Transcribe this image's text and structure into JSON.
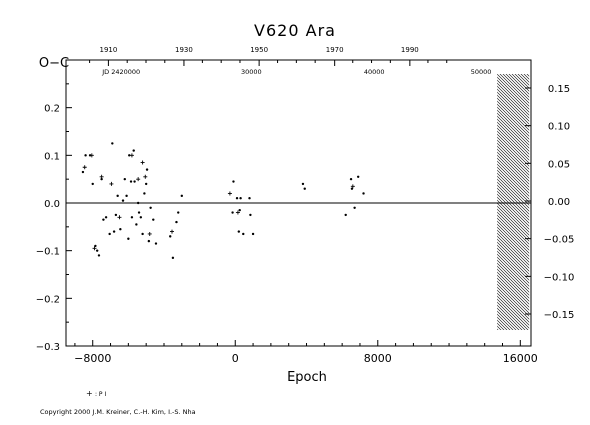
{
  "chart_data": {
    "type": "scatter",
    "title": "V620  Ara",
    "ylabel": "O−C",
    "xlabel": "Epoch",
    "xlim": [
      -9500,
      16600
    ],
    "ylim": [
      -0.3,
      0.3
    ],
    "bottom_ticks": {
      "values": [
        -8000,
        0,
        8000,
        16000
      ],
      "labels": [
        "−8000",
        "0",
        "8000",
        "16000"
      ]
    },
    "left_ticks": {
      "values": [
        0.2,
        0.1,
        0.0,
        -0.1,
        -0.2,
        -0.3
      ],
      "labels": [
        "0.2",
        "0.1",
        "0.0",
        "−0.1",
        "−0.2",
        "−0.3"
      ]
    },
    "right_ticks": {
      "values": [
        0.15,
        0.1,
        0.05,
        0.0,
        -0.05,
        -0.1,
        -0.15
      ],
      "labels": [
        "0.15",
        "0.10",
        "0.05",
        "0.00",
        "−0.05",
        "−0.10",
        "−0.15"
      ]
    },
    "top_year_ticks": {
      "years": [
        1910,
        1930,
        1950,
        1970,
        1990
      ],
      "epochs": [
        -7120,
        -2880,
        1340,
        5580,
        9800
      ],
      "labels": [
        "1910",
        "1930",
        "1950",
        "1970",
        "1990"
      ]
    },
    "top_jd_labels": {
      "epochs": [
        -6400,
        900,
        7800,
        13800
      ],
      "labels": [
        "JD  2420000",
        "30000",
        "40000",
        "50000"
      ]
    },
    "hatched_region_x": [
      14700,
      16500
    ],
    "series": [
      {
        "marker": "dot",
        "points": [
          [
            -8550,
            0.065
          ],
          [
            -8400,
            0.1
          ],
          [
            -8150,
            0.1
          ],
          [
            -8000,
            0.04
          ],
          [
            -7850,
            -0.09
          ],
          [
            -7750,
            -0.1
          ],
          [
            -7650,
            -0.11
          ],
          [
            -7500,
            0.05
          ],
          [
            -7400,
            -0.035
          ],
          [
            -7250,
            -0.03
          ],
          [
            -7050,
            -0.065
          ],
          [
            -6900,
            0.125
          ],
          [
            -6800,
            -0.06
          ],
          [
            -6700,
            -0.025
          ],
          [
            -6600,
            0.015
          ],
          [
            -6450,
            -0.055
          ],
          [
            -6300,
            0.005
          ],
          [
            -6200,
            0.05
          ],
          [
            -6100,
            0.015
          ],
          [
            -6000,
            -0.075
          ],
          [
            -5950,
            0.1
          ],
          [
            -5850,
            0.045
          ],
          [
            -5800,
            -0.03
          ],
          [
            -5700,
            0.11
          ],
          [
            -5650,
            0.045
          ],
          [
            -5550,
            -0.045
          ],
          [
            -5450,
            0.0
          ],
          [
            -5400,
            -0.02
          ],
          [
            -5300,
            -0.03
          ],
          [
            -5200,
            -0.065
          ],
          [
            -5100,
            0.02
          ],
          [
            -5000,
            0.04
          ],
          [
            -4950,
            0.07
          ],
          [
            -4850,
            -0.08
          ],
          [
            -4750,
            -0.01
          ],
          [
            -4600,
            -0.035
          ],
          [
            -4450,
            -0.085
          ],
          [
            -3650,
            -0.07
          ],
          [
            -3500,
            -0.115
          ],
          [
            -3200,
            -0.02
          ],
          [
            -3000,
            0.015
          ],
          [
            -3300,
            -0.04
          ],
          [
            -100,
            0.045
          ],
          [
            100,
            0.01
          ],
          [
            200,
            -0.06
          ],
          [
            300,
            0.01
          ],
          [
            450,
            -0.065
          ],
          [
            -150,
            -0.02
          ],
          [
            250,
            -0.015
          ],
          [
            800,
            0.01
          ],
          [
            1000,
            -0.065
          ],
          [
            850,
            -0.025
          ],
          [
            3800,
            0.04
          ],
          [
            3900,
            0.03
          ],
          [
            6200,
            -0.025
          ],
          [
            6500,
            0.05
          ],
          [
            6700,
            -0.01
          ],
          [
            6550,
            0.03
          ],
          [
            7200,
            0.02
          ],
          [
            6900,
            0.055
          ]
        ]
      },
      {
        "marker": "plus",
        "points": [
          [
            -8450,
            0.075
          ],
          [
            -8050,
            0.1
          ],
          [
            -7500,
            0.055
          ],
          [
            -6950,
            0.04
          ],
          [
            -5800,
            0.1
          ],
          [
            -5450,
            0.05
          ],
          [
            -5200,
            0.085
          ],
          [
            -5050,
            0.055
          ],
          [
            -4800,
            -0.065
          ],
          [
            -6500,
            -0.03
          ],
          [
            -3550,
            -0.06
          ],
          [
            -300,
            0.02
          ],
          [
            150,
            -0.02
          ],
          [
            6600,
            0.035
          ],
          [
            -7900,
            -0.095
          ]
        ]
      }
    ],
    "legend": {
      "symbol": "+",
      "text": ": P I"
    }
  },
  "footer": {
    "copyright": "Copyright 2000 J.M. Kreiner, C.-H. Kim, I.-S. Nha"
  }
}
